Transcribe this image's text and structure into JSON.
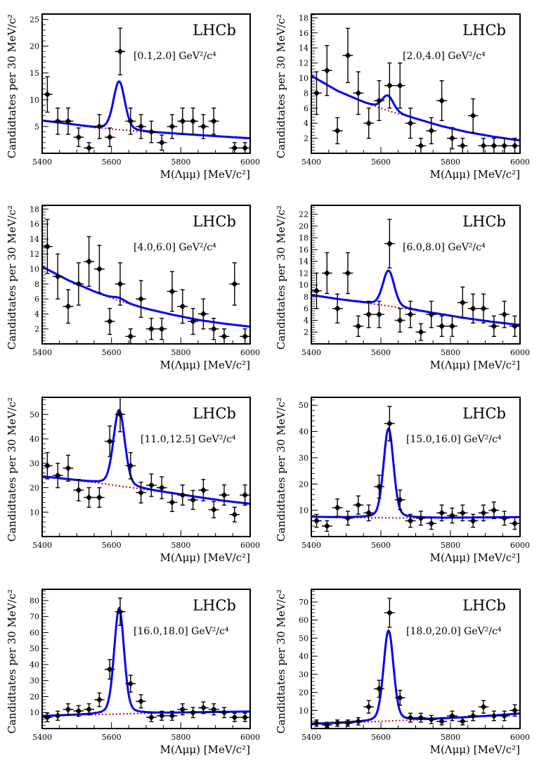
{
  "colors": {
    "fit": "#0000ff",
    "background": "#cc0000",
    "data": "#000000"
  },
  "chart_data": [
    {
      "type": "scatter",
      "label": "LHCb",
      "q2_label": "[0.1,2.0] GeV²/c⁴",
      "xlabel": "M(Λμμ) [MeV/c²]",
      "ylabel": "Candidtates per 30 MeV/c²",
      "xlim": [
        5400,
        6000
      ],
      "ylim": [
        0,
        26
      ],
      "xticks": [
        5400,
        5600,
        5800,
        6000
      ],
      "yticks": [
        5,
        10,
        15,
        20,
        25
      ],
      "yticks_labels": [
        "5",
        "10",
        "15",
        "20",
        "25"
      ],
      "x": [
        5415,
        5445,
        5475,
        5505,
        5535,
        5565,
        5595,
        5625,
        5655,
        5685,
        5715,
        5745,
        5775,
        5805,
        5835,
        5865,
        5895,
        5925,
        5955,
        5985
      ],
      "y": [
        11,
        6,
        6,
        3,
        1,
        5,
        3,
        19,
        6,
        5,
        4,
        2,
        5,
        6,
        6,
        5,
        6,
        0,
        1,
        1
      ],
      "fit": {
        "peak": 9.0,
        "mu": 5622,
        "sigma": 16,
        "bkg": [
          6.1,
          5.5,
          4.8,
          4.4,
          4.0,
          3.7,
          3.4,
          3.1,
          2.8
        ]
      }
    },
    {
      "type": "scatter",
      "label": "LHCb",
      "q2_label": "[2.0,4.0] GeV²/c⁴",
      "xlabel": "M(Λμμ) [MeV/c²]",
      "ylabel": "Candidtates per 30 MeV/c²",
      "xlim": [
        5400,
        6000
      ],
      "ylim": [
        0,
        18.5
      ],
      "xticks": [
        5400,
        5600,
        5800,
        6000
      ],
      "yticks": [
        2,
        4,
        6,
        8,
        10,
        12,
        14,
        16,
        18
      ],
      "yticks_labels": [
        "2",
        "4",
        "6",
        "8",
        "10",
        "12",
        "14",
        "16",
        "18"
      ],
      "x": [
        5415,
        5445,
        5475,
        5505,
        5535,
        5565,
        5595,
        5625,
        5655,
        5685,
        5715,
        5745,
        5775,
        5805,
        5835,
        5865,
        5895,
        5925,
        5955,
        5985
      ],
      "y": [
        8,
        11,
        3,
        13,
        8,
        4,
        7,
        9,
        9,
        4,
        1,
        3,
        7,
        2,
        1,
        5,
        1,
        1,
        1,
        1
      ],
      "fit": {
        "peak": 2.0,
        "mu": 5620,
        "sigma": 16,
        "bkg": [
          10.3,
          8.3,
          6.8,
          5.6,
          4.6,
          3.6,
          2.8,
          2.2,
          1.7
        ]
      }
    },
    {
      "type": "scatter",
      "label": "LHCb",
      "q2_label": "[4.0,6.0] GeV²/c⁴",
      "xlabel": "M(Λμμ) [MeV/c²]",
      "ylabel": "Candidtates per 30 MeV/c²",
      "xlim": [
        5400,
        6000
      ],
      "ylim": [
        0,
        18.5
      ],
      "xticks": [
        5400,
        5600,
        5800,
        6000
      ],
      "yticks": [
        2,
        4,
        6,
        8,
        10,
        12,
        14,
        16,
        18
      ],
      "yticks_labels": [
        "2",
        "4",
        "6",
        "8",
        "10",
        "12",
        "14",
        "16",
        "18"
      ],
      "x": [
        5415,
        5445,
        5475,
        5505,
        5535,
        5565,
        5595,
        5625,
        5655,
        5685,
        5715,
        5745,
        5775,
        5805,
        5835,
        5865,
        5895,
        5925,
        5955,
        5985
      ],
      "y": [
        13,
        9,
        5,
        8,
        11,
        10,
        3,
        8,
        1,
        6,
        2,
        2,
        7,
        5,
        3,
        4,
        2,
        1,
        8,
        1
      ],
      "fit": {
        "peak": 0.4,
        "mu": 5622,
        "sigma": 16,
        "bkg": [
          10.3,
          8.5,
          7.0,
          5.7,
          4.7,
          3.9,
          3.2,
          2.7,
          2.3
        ]
      }
    },
    {
      "type": "scatter",
      "label": "LHCb",
      "q2_label": "[6.0,8.0] GeV²/c⁴",
      "xlabel": "M(Λμμ) [MeV/c²]",
      "ylabel": "Candidtates per 30 MeV/c²",
      "xlim": [
        5400,
        6000
      ],
      "ylim": [
        0,
        23.5
      ],
      "xticks": [
        5400,
        5600,
        5800,
        6000
      ],
      "yticks": [
        2,
        4,
        6,
        8,
        10,
        12,
        14,
        16,
        18,
        20,
        22
      ],
      "yticks_labels": [
        "2",
        "4",
        "6",
        "8",
        "10",
        "12",
        "14",
        "16",
        "18",
        "20",
        "22"
      ],
      "x": [
        5415,
        5445,
        5475,
        5505,
        5535,
        5565,
        5595,
        5625,
        5655,
        5685,
        5715,
        5745,
        5775,
        5805,
        5835,
        5865,
        5895,
        5925,
        5955,
        5985
      ],
      "y": [
        9,
        12,
        6,
        12,
        3,
        5,
        5,
        17,
        4,
        5,
        2,
        5,
        3,
        3,
        7,
        6,
        6,
        3,
        5,
        3
      ],
      "fit": {
        "peak": 6.0,
        "mu": 5622,
        "sigma": 16,
        "bkg": [
          8.3,
          7.6,
          7.0,
          6.4,
          5.7,
          5.0,
          4.3,
          3.7,
          3.2
        ]
      }
    },
    {
      "type": "scatter",
      "label": "LHCb",
      "q2_label": "[11.0,12.5] GeV²/c⁴",
      "xlabel": "M(Λμμ) [MeV/c²]",
      "ylabel": "Candidtates per 30 MeV/c²",
      "xlim": [
        5400,
        6000
      ],
      "ylim": [
        0,
        57
      ],
      "xticks": [
        5400,
        5600,
        5800,
        6000
      ],
      "yticks": [
        10,
        20,
        30,
        40,
        50
      ],
      "yticks_labels": [
        "10",
        "20",
        "30",
        "40",
        "50"
      ],
      "x": [
        5415,
        5445,
        5475,
        5505,
        5535,
        5565,
        5595,
        5625,
        5655,
        5685,
        5715,
        5745,
        5775,
        5805,
        5835,
        5865,
        5895,
        5925,
        5955,
        5985
      ],
      "y": [
        29,
        25,
        28,
        19,
        16,
        16,
        39,
        50,
        29,
        18,
        21,
        20,
        14,
        17,
        15,
        19,
        11,
        17,
        9,
        17
      ],
      "fit": {
        "peak": 31.0,
        "mu": 5622,
        "sigma": 16,
        "bkg": [
          24.6,
          23.4,
          22.1,
          20.7,
          19.2,
          17.7,
          16.1,
          14.6,
          13.4
        ]
      }
    },
    {
      "type": "scatter",
      "label": "LHCb",
      "q2_label": "[15.0,16.0] GeV²/c⁴",
      "xlabel": "M(Λμμ) [MeV/c²]",
      "ylabel": "Candidtates per 30 MeV/c²",
      "xlim": [
        5400,
        6000
      ],
      "ylim": [
        0,
        53
      ],
      "xticks": [
        5400,
        5600,
        5800,
        6000
      ],
      "yticks": [
        10,
        20,
        30,
        40,
        50
      ],
      "yticks_labels": [
        "10",
        "20",
        "30",
        "40",
        "50"
      ],
      "x": [
        5415,
        5445,
        5475,
        5505,
        5535,
        5565,
        5595,
        5625,
        5655,
        5685,
        5715,
        5745,
        5775,
        5805,
        5835,
        5865,
        5895,
        5925,
        5955,
        5985
      ],
      "y": [
        6,
        4,
        11,
        7,
        12,
        9,
        19,
        43,
        14,
        6,
        7,
        5,
        9,
        8,
        9,
        6,
        9,
        10,
        7,
        5
      ],
      "fit": {
        "peak": 34.0,
        "mu": 5622,
        "sigma": 14,
        "bkg": [
          7.5,
          7.3,
          7.2,
          7.1,
          7.1,
          7.1,
          7.2,
          7.3,
          7.4
        ]
      }
    },
    {
      "type": "scatter",
      "label": "LHCb",
      "q2_label": "[16.0,18.0] GeV²/c⁴",
      "xlabel": "M(Λμμ) [MeV/c²]",
      "ylabel": "Candidtates per 30 MeV/c²",
      "xlim": [
        5400,
        6000
      ],
      "ylim": [
        0,
        87
      ],
      "xticks": [
        5400,
        5600,
        5800,
        6000
      ],
      "yticks": [
        10,
        20,
        30,
        40,
        50,
        60,
        70,
        80
      ],
      "yticks_labels": [
        "10",
        "20",
        "30",
        "40",
        "50",
        "60",
        "70",
        "80"
      ],
      "x": [
        5415,
        5445,
        5475,
        5505,
        5535,
        5565,
        5595,
        5625,
        5655,
        5685,
        5715,
        5745,
        5775,
        5805,
        5835,
        5865,
        5895,
        5925,
        5955,
        5985
      ],
      "y": [
        7,
        8,
        12,
        11,
        12,
        18,
        37,
        73,
        28,
        17,
        7,
        8,
        8,
        12,
        10,
        13,
        12,
        10,
        7,
        7
      ],
      "fit": {
        "peak": 66.0,
        "mu": 5622,
        "sigma": 14,
        "bkg": [
          7.8,
          8.3,
          8.7,
          9.1,
          9.5,
          9.8,
          10.1,
          10.4,
          10.6
        ]
      }
    },
    {
      "type": "scatter",
      "label": "LHCb",
      "q2_label": "[18.0,20.0] GeV²/c⁴",
      "xlabel": "M(Λμμ) [MeV/c²]",
      "ylabel": "Candidtates per 30 MeV/c²",
      "xlim": [
        5400,
        6000
      ],
      "ylim": [
        0,
        77
      ],
      "xticks": [
        5400,
        5600,
        5800,
        6000
      ],
      "yticks": [
        10,
        20,
        30,
        40,
        50,
        60,
        70
      ],
      "yticks_labels": [
        "10",
        "20",
        "30",
        "40",
        "50",
        "60",
        "70"
      ],
      "x": [
        5415,
        5445,
        5475,
        5505,
        5535,
        5565,
        5595,
        5625,
        5655,
        5685,
        5715,
        5745,
        5775,
        5805,
        5835,
        5865,
        5895,
        5925,
        5955,
        5985
      ],
      "y": [
        3,
        2,
        3,
        3,
        4,
        12,
        22,
        64,
        17,
        6,
        6,
        5,
        4,
        7,
        4,
        7,
        12,
        7,
        7,
        10
      ],
      "fit": {
        "peak": 50.0,
        "mu": 5622,
        "sigma": 14,
        "bkg": [
          2.5,
          3.1,
          3.6,
          4.2,
          4.8,
          5.5,
          6.3,
          7.2,
          8.3
        ]
      }
    }
  ]
}
